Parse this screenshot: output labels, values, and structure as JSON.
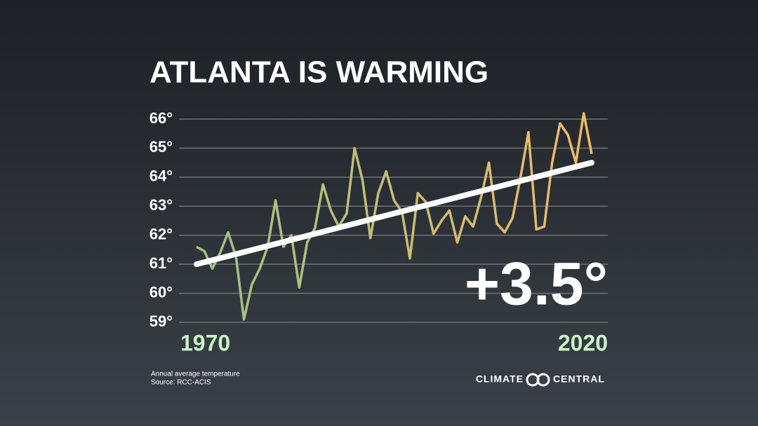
{
  "chart_data": {
    "type": "line",
    "title": "ATLANTA IS WARMING",
    "annotation": "+3.5°",
    "footnote": [
      "Annual average temperature",
      "Source: RCC-ACIS"
    ],
    "brand": [
      "CLIMATE",
      "CENTRAL"
    ],
    "x": [
      1970,
      1971,
      1972,
      1973,
      1974,
      1975,
      1976,
      1977,
      1978,
      1979,
      1980,
      1981,
      1982,
      1983,
      1984,
      1985,
      1986,
      1987,
      1988,
      1989,
      1990,
      1991,
      1992,
      1993,
      1994,
      1995,
      1996,
      1997,
      1998,
      1999,
      2000,
      2001,
      2002,
      2003,
      2004,
      2005,
      2006,
      2007,
      2008,
      2009,
      2010,
      2011,
      2012,
      2013,
      2014,
      2015,
      2016,
      2017,
      2018,
      2019,
      2020
    ],
    "series": [
      {
        "name": "Annual average temperature",
        "color": [
          "#9cc384",
          "#f0b866"
        ],
        "values": [
          61.6,
          61.45,
          60.85,
          61.4,
          62.1,
          61.25,
          59.1,
          60.3,
          60.85,
          61.6,
          63.2,
          61.6,
          62.0,
          60.2,
          61.75,
          62.25,
          63.75,
          62.85,
          62.3,
          62.75,
          65.0,
          63.9,
          61.9,
          63.45,
          64.2,
          63.2,
          62.8,
          61.2,
          63.45,
          63.15,
          62.05,
          62.5,
          62.85,
          61.75,
          62.65,
          62.3,
          63.3,
          64.5,
          62.4,
          62.1,
          62.6,
          64.0,
          65.55,
          62.2,
          62.3,
          64.5,
          65.85,
          65.45,
          64.5,
          66.2,
          64.8
        ]
      }
    ],
    "trend": {
      "x": [
        1970,
        2020
      ],
      "values": [
        61.0,
        64.5
      ],
      "color": "#ffffff"
    },
    "xlim": [
      1970,
      2020
    ],
    "xticks": [
      1970,
      2020
    ],
    "ylim": [
      59,
      66
    ],
    "yticks": [
      {
        "value": 59,
        "label": "59°"
      },
      {
        "value": 60,
        "label": "60°"
      },
      {
        "value": 61,
        "label": "61°"
      },
      {
        "value": 62,
        "label": "62°"
      },
      {
        "value": 63,
        "label": "63°"
      },
      {
        "value": 64,
        "label": "64°"
      },
      {
        "value": 65,
        "label": "65°"
      },
      {
        "value": 66,
        "label": "66°"
      }
    ],
    "grid": true
  }
}
